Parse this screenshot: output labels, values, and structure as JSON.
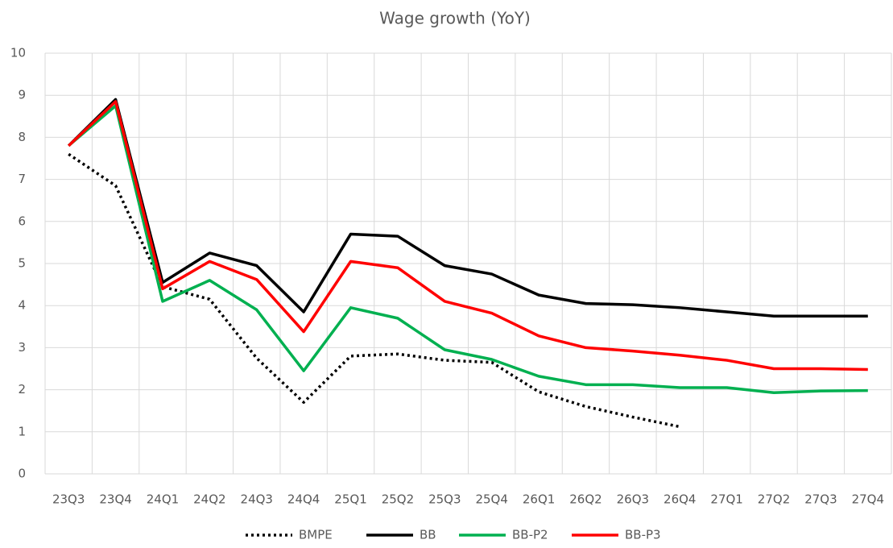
{
  "chart_data": {
    "type": "line",
    "title": "Wage growth (YoY)",
    "categories": [
      "23Q3",
      "23Q4",
      "24Q1",
      "24Q2",
      "24Q3",
      "24Q4",
      "25Q1",
      "25Q2",
      "25Q3",
      "25Q4",
      "26Q1",
      "26Q2",
      "26Q3",
      "26Q4",
      "27Q1",
      "27Q2",
      "27Q3",
      "27Q4"
    ],
    "series": [
      {
        "name": "BMPE",
        "color": "#000000",
        "dash": "dotted",
        "values": [
          7.6,
          6.85,
          4.45,
          4.15,
          2.75,
          1.7,
          2.8,
          2.85,
          2.7,
          2.65,
          1.95,
          1.6,
          1.35,
          1.12,
          null,
          null,
          null,
          null
        ]
      },
      {
        "name": "BB",
        "color": "#000000",
        "dash": "solid",
        "values": [
          7.8,
          8.9,
          4.55,
          5.25,
          4.95,
          3.85,
          5.7,
          5.65,
          4.95,
          4.75,
          4.25,
          4.05,
          4.02,
          3.95,
          3.85,
          3.75,
          3.75,
          3.75
        ]
      },
      {
        "name": "BB-P2",
        "color": "#00b050",
        "dash": "solid",
        "values": [
          7.8,
          8.75,
          4.1,
          4.6,
          3.9,
          2.45,
          3.95,
          3.7,
          2.95,
          2.72,
          2.32,
          2.12,
          2.12,
          2.05,
          2.05,
          1.93,
          1.97,
          1.98
        ]
      },
      {
        "name": "BB-P3",
        "color": "#ff0000",
        "dash": "solid",
        "values": [
          7.8,
          8.85,
          4.4,
          5.05,
          4.62,
          3.38,
          5.05,
          4.9,
          4.1,
          3.82,
          3.28,
          3.0,
          2.92,
          2.82,
          2.7,
          2.5,
          2.5,
          2.48
        ]
      }
    ],
    "ylim": [
      0,
      10
    ],
    "yticks": [
      0,
      1,
      2,
      3,
      4,
      5,
      6,
      7,
      8,
      9,
      10
    ],
    "grid": true,
    "legend": "bottom"
  }
}
